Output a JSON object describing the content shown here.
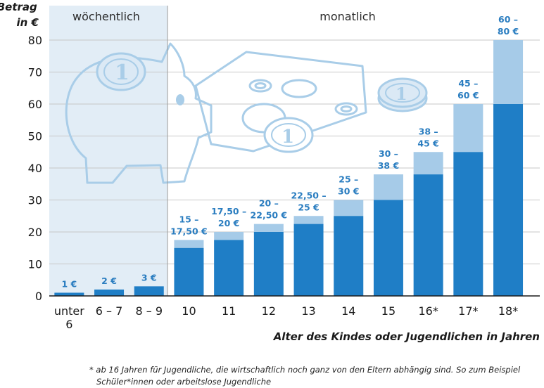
{
  "chart_data": {
    "type": "bar",
    "ylabel_lines": [
      "Betrag",
      "in €"
    ],
    "xlabel": "Alter des Kindes oder Jugendlichen in Jahren",
    "ylim": [
      0,
      80
    ],
    "yticks": [
      0,
      10,
      20,
      30,
      40,
      50,
      60,
      70,
      80
    ],
    "grid": true,
    "sections": [
      {
        "label": "wöchentlich"
      },
      {
        "label": "monatlich"
      }
    ],
    "categories": [
      {
        "lines": [
          "unter",
          "6"
        ],
        "section": "wöchentlich",
        "low": 1,
        "high": 1,
        "label_lines": [
          "1 €"
        ]
      },
      {
        "lines": [
          "6 – 7"
        ],
        "section": "wöchentlich",
        "low": 2,
        "high": 2,
        "label_lines": [
          "2 €"
        ]
      },
      {
        "lines": [
          "8 – 9"
        ],
        "section": "wöchentlich",
        "low": 3,
        "high": 3,
        "label_lines": [
          "3 €"
        ]
      },
      {
        "lines": [
          "10"
        ],
        "section": "monatlich",
        "low": 15,
        "high": 17.5,
        "label_lines": [
          "15 –",
          "17,50 €"
        ]
      },
      {
        "lines": [
          "11"
        ],
        "section": "monatlich",
        "low": 17.5,
        "high": 20,
        "label_lines": [
          "17,50 –",
          "20 €"
        ]
      },
      {
        "lines": [
          "12"
        ],
        "section": "monatlich",
        "low": 20,
        "high": 22.5,
        "label_lines": [
          "20 –",
          "22,50 €"
        ]
      },
      {
        "lines": [
          "13"
        ],
        "section": "monatlich",
        "low": 22.5,
        "high": 25,
        "label_lines": [
          "22,50 –",
          "25 €"
        ]
      },
      {
        "lines": [
          "14"
        ],
        "section": "monatlich",
        "low": 25,
        "high": 30,
        "label_lines": [
          "25 –",
          "30 €"
        ]
      },
      {
        "lines": [
          "15"
        ],
        "section": "monatlich",
        "low": 30,
        "high": 38,
        "label_lines": [
          "30 –",
          "38 €"
        ]
      },
      {
        "lines": [
          "16*"
        ],
        "section": "monatlich",
        "low": 38,
        "high": 45,
        "label_lines": [
          "38 –",
          "45 €"
        ]
      },
      {
        "lines": [
          "17*"
        ],
        "section": "monatlich",
        "low": 45,
        "high": 60,
        "label_lines": [
          "45 –",
          "60 €"
        ]
      },
      {
        "lines": [
          "18*"
        ],
        "section": "monatlich",
        "low": 60,
        "high": 80,
        "label_lines": [
          "60 –",
          "80 €"
        ]
      }
    ],
    "colors": {
      "low": "#1f7ec6",
      "range": "#a6cbe8",
      "weekly_bg": "#e2edf6",
      "value_label": "#2a7dc0",
      "grid": "#c7c7c7",
      "illustration": "#a9cde8"
    }
  },
  "footnote": {
    "line1": "* ab 16 Jahren für Jugendliche, die wirtschaftlich noch ganz von den Eltern abhängig sind. So zum Beispiel",
    "line2": "Schüler*innen oder arbeitslose Jugendliche"
  }
}
